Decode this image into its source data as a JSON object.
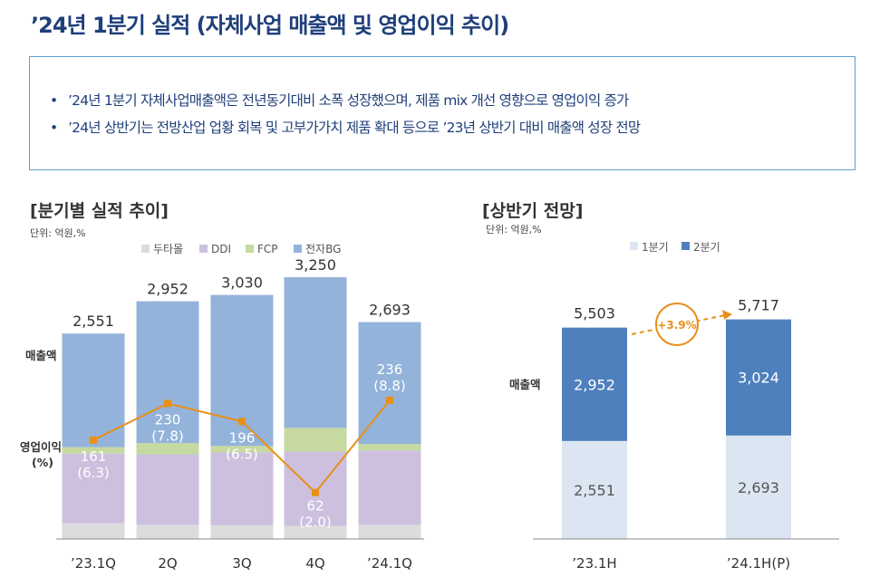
{
  "page": {
    "title": "’24년 1분기 실적 (자체사업 매출액 및 영업이익 추이)",
    "bullets": [
      "’24년 1분기 자체사업매출액은 전년동기대비 소폭 성장했으며, 제품 mix 개선 영향으로 영업이익 증가",
      "’24년 상반기는 전방산업 업황 회복 및 고부가가치 제품 확대 등으로 ’23년 상반기 대비 매출액 성장 전망"
    ]
  },
  "colors": {
    "title": "#1f3f7a",
    "box_border": "#5aa0cf",
    "dutamall": "#dcdcdc",
    "ddi": "#cdc0de",
    "fcp": "#c5d9a0",
    "electronics_bg": "#93b3da",
    "op_line": "#e8901a",
    "q1": "#dce6f2",
    "q2": "#4e80bd"
  },
  "quarterly": {
    "title": "[분기별 실적 추이]",
    "unit": "단위: 억원,%",
    "legend": [
      "두타몰",
      "DDI",
      "FCP",
      "전자BG"
    ],
    "revenue_axis_label": "매출액",
    "op_axis_label": [
      "영업이익",
      "(%)"
    ]
  },
  "halfyear": {
    "title": "[상반기 전망]",
    "unit": "단위: 억원,%",
    "legend": [
      "1분기",
      "2분기"
    ],
    "revenue_axis_label": "매출액",
    "growth_label": "+3.9%"
  },
  "chart_data": [
    {
      "type": "bar",
      "stacked": true,
      "title": "[분기별 실적 추이]",
      "categories": [
        "’23.1Q",
        "2Q",
        "3Q",
        "4Q",
        "’24.1Q"
      ],
      "series": [
        {
          "name": "두타몰",
          "values": [
            195,
            175,
            170,
            160,
            175
          ]
        },
        {
          "name": "DDI",
          "values": [
            865,
            875,
            905,
            925,
            925
          ]
        },
        {
          "name": "FCP",
          "values": [
            80,
            140,
            80,
            295,
            80
          ]
        },
        {
          "name": "전자BG",
          "values": [
            1411,
            1762,
            1875,
            1870,
            1513
          ]
        }
      ],
      "totals": [
        2551,
        2952,
        3030,
        3250,
        2693
      ],
      "total_labels": [
        "2,551",
        "2,952",
        "3,030",
        "3,250",
        "2,693"
      ],
      "operating_profit": [
        161,
        230,
        196,
        62,
        236
      ],
      "operating_margin": [
        6.3,
        7.8,
        6.5,
        2.0,
        8.8
      ],
      "op_labels": [
        "161",
        "230",
        "196",
        "62",
        "236"
      ],
      "op_margin_labels": [
        "(6.3)",
        "(7.8)",
        "(6.5)",
        "(2.0)",
        "(8.8)"
      ],
      "ylim": [
        0,
        3600
      ],
      "grid": false,
      "legend_position": "top"
    },
    {
      "type": "bar",
      "stacked": true,
      "title": "[상반기 전망]",
      "categories": [
        "’23.1H",
        "’24.1H(P)"
      ],
      "series": [
        {
          "name": "1분기",
          "values": [
            2551,
            2693
          ]
        },
        {
          "name": "2분기",
          "values": [
            2952,
            3024
          ]
        }
      ],
      "totals": [
        5503,
        5717
      ],
      "total_labels": [
        "5,503",
        "5,717"
      ],
      "segment_labels": [
        [
          "2,551",
          "2,952"
        ],
        [
          "2,693",
          "3,024"
        ]
      ],
      "growth": "+3.9%",
      "ylim": [
        0,
        6400
      ],
      "grid": false,
      "legend_position": "top"
    }
  ]
}
